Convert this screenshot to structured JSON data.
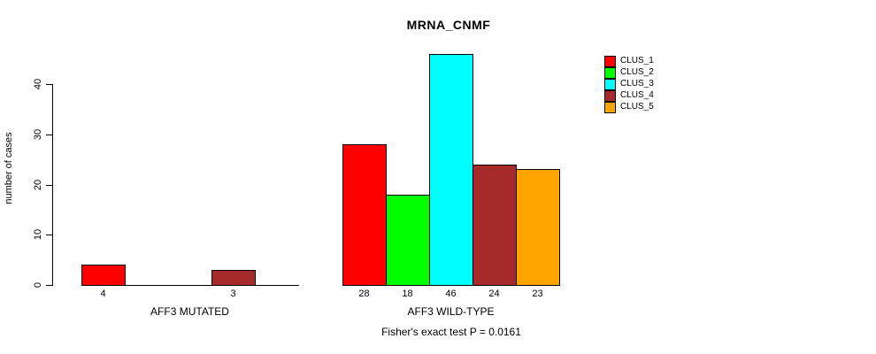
{
  "chart_data": {
    "type": "bar",
    "title": "MRNA_CNMF",
    "xlabel": "",
    "ylabel": "number of cases",
    "ylim": [
      0,
      47
    ],
    "yticks": [
      0,
      10,
      20,
      30,
      40
    ],
    "grid": false,
    "legend_position": "right-outside-top",
    "categories": [
      "CLUS_1",
      "CLUS_2",
      "CLUS_3",
      "CLUS_4",
      "CLUS_5"
    ],
    "series_colors": [
      "#FF0000",
      "#00FF00",
      "#00FFFF",
      "#A52A2A",
      "#FFA500"
    ],
    "groups": [
      {
        "label": "AFF3 MUTATED",
        "values": [
          4,
          0,
          0,
          3,
          0
        ]
      },
      {
        "label": "AFF3 WILD-TYPE",
        "values": [
          28,
          18,
          46,
          24,
          23
        ]
      }
    ],
    "bar_value_labels_shown_for_nonzero": true,
    "annotation": "Fisher's exact test P = 0.0161"
  },
  "legend": {
    "items": [
      {
        "label": "CLUS_1",
        "color": "#FF0000"
      },
      {
        "label": "CLUS_2",
        "color": "#00FF00"
      },
      {
        "label": "CLUS_3",
        "color": "#00FFFF"
      },
      {
        "label": "CLUS_4",
        "color": "#A52A2A"
      },
      {
        "label": "CLUS_5",
        "color": "#FFA500"
      }
    ]
  },
  "colors": {
    "background": "#FFFFFF",
    "axis": "#000000",
    "text": "#000000"
  }
}
